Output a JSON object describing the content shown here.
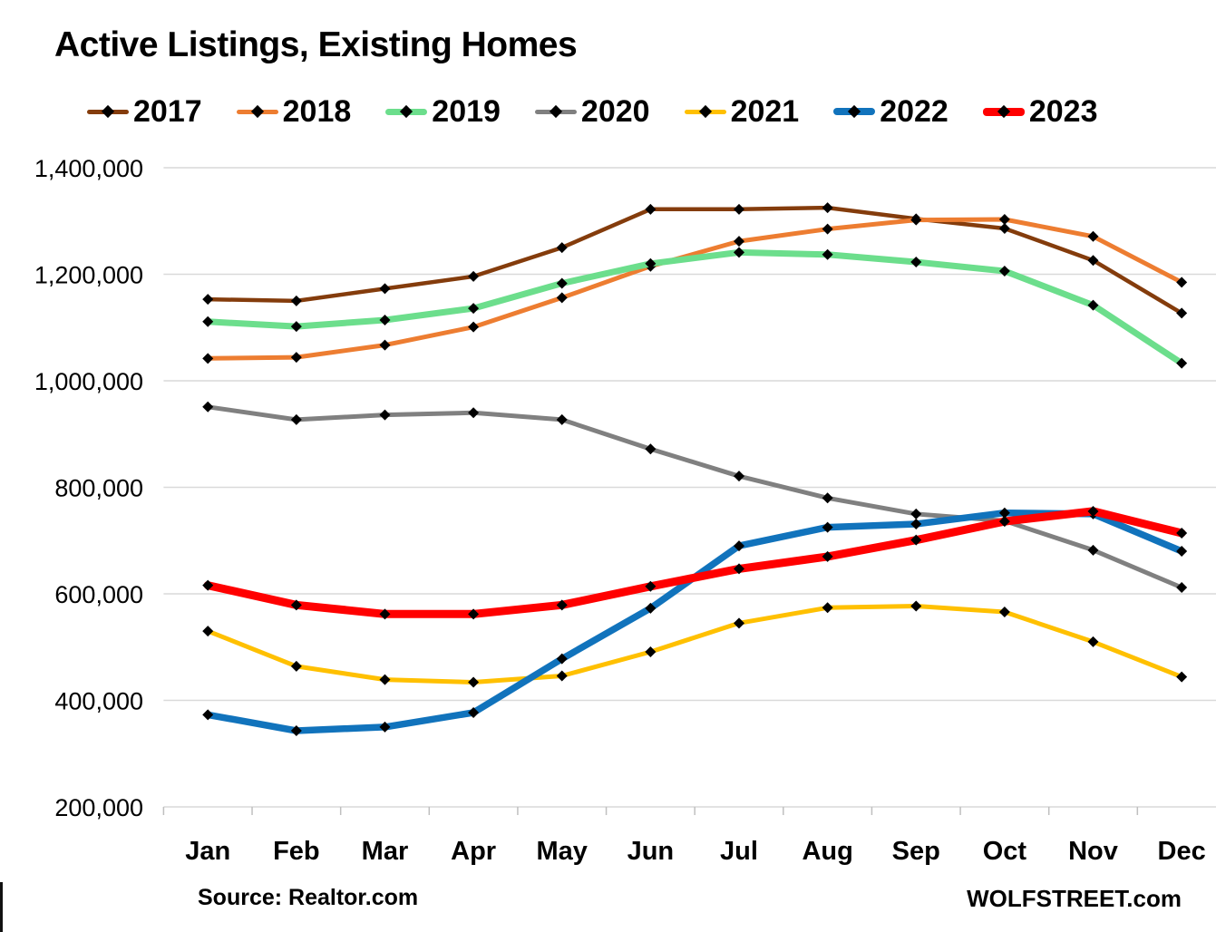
{
  "title": "Active Listings, Existing Homes",
  "source_label": "Source: Realtor.com",
  "branding_label": "WOLFSTREET.com",
  "chart_data": {
    "type": "line",
    "title": "Active Listings, Existing Homes",
    "categories": [
      "Jan",
      "Feb",
      "Mar",
      "Apr",
      "May",
      "Jun",
      "Jul",
      "Aug",
      "Sep",
      "Oct",
      "Nov",
      "Dec"
    ],
    "ylim": [
      200000,
      1400000
    ],
    "ytick_interval": 200000,
    "ytick_labels": [
      "200,000",
      "400,000",
      "600,000",
      "800,000",
      "1,000,000",
      "1,200,000",
      "1,400,000"
    ],
    "grid": true,
    "legend_position": "top",
    "marker": "diamond",
    "marker_color": "#000000",
    "gridline_color": "#D9D9D9",
    "axis_tick_color": "#BFBFBF",
    "series": [
      {
        "name": "2017",
        "color": "#843C0C",
        "line_width": 4.5,
        "values": [
          1153000,
          1150000,
          1173000,
          1196000,
          1250000,
          1322000,
          1322000,
          1325000,
          1304000,
          1286000,
          1226000,
          1127000
        ]
      },
      {
        "name": "2018",
        "color": "#ED7D31",
        "line_width": 5,
        "values": [
          1042000,
          1044000,
          1067000,
          1101000,
          1156000,
          1215000,
          1262000,
          1285000,
          1302000,
          1303000,
          1271000,
          1185000
        ]
      },
      {
        "name": "2019",
        "color": "#6CDE8C",
        "line_width": 7,
        "values": [
          1111000,
          1102000,
          1114000,
          1136000,
          1183000,
          1220000,
          1241000,
          1237000,
          1223000,
          1206000,
          1142000,
          1033000
        ]
      },
      {
        "name": "2020",
        "color": "#808080",
        "line_width": 5,
        "values": [
          951000,
          927000,
          936000,
          940000,
          927000,
          872000,
          821000,
          780000,
          750000,
          737000,
          682000,
          612000
        ]
      },
      {
        "name": "2021",
        "color": "#FFC000",
        "line_width": 5,
        "values": [
          530000,
          464000,
          439000,
          434000,
          446000,
          491000,
          545000,
          574000,
          577000,
          566000,
          510000,
          444000
        ]
      },
      {
        "name": "2022",
        "color": "#1173BC",
        "line_width": 7.5,
        "values": [
          373000,
          343000,
          350000,
          377000,
          478000,
          573000,
          690000,
          725000,
          731000,
          752000,
          750000,
          680000
        ]
      },
      {
        "name": "2023",
        "color": "#FF0000",
        "line_width": 9,
        "values": [
          616000,
          579000,
          562000,
          562000,
          579000,
          614000,
          647000,
          670000,
          701000,
          736000,
          755000,
          714000
        ]
      }
    ]
  }
}
